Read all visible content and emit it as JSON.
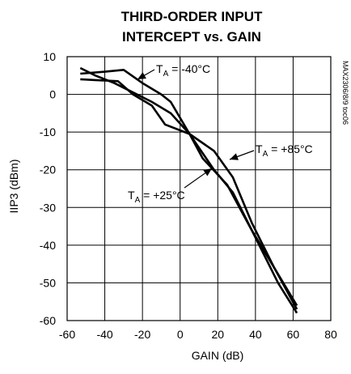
{
  "chart_data": {
    "type": "line",
    "title": [
      "THIRD-ORDER INPUT",
      "INTERCEPT vs. GAIN"
    ],
    "xlabel": "GAIN (dB)",
    "ylabel": "IIP3 (dBm)",
    "xlim": [
      -60,
      80
    ],
    "ylim": [
      -60,
      10
    ],
    "x_ticks": [
      -60,
      -40,
      -20,
      0,
      20,
      40,
      60,
      80
    ],
    "y_ticks": [
      10,
      0,
      -10,
      -20,
      -30,
      -40,
      -50,
      -60
    ],
    "grid": true,
    "reference_code": "MAX2306/8/9 toc06",
    "series": [
      {
        "x": [
          -53,
          -45,
          -33,
          -25,
          -15,
          -8,
          5,
          18,
          28,
          38,
          50,
          62
        ],
        "y": [
          4,
          3.8,
          3.5,
          0,
          -3,
          -8,
          -10.5,
          -15,
          -22,
          -34,
          -46,
          -57
        ]
      },
      {
        "x": [
          -53,
          -40,
          -30,
          -20,
          -10,
          -5,
          5,
          12,
          25,
          38,
          50,
          62
        ],
        "y": [
          5.5,
          6,
          6.5,
          3,
          0,
          -2,
          -10.5,
          -17,
          -24,
          -36,
          -46,
          -56
        ]
      },
      {
        "x": [
          -53,
          -45,
          -35,
          -25,
          -15,
          -5,
          5,
          18,
          28,
          40,
          52,
          62
        ],
        "y": [
          7,
          5,
          3,
          0.5,
          -2,
          -5,
          -10.5,
          -20,
          -26,
          -38,
          -50,
          -58
        ]
      }
    ],
    "annotations": [
      {
        "main": "T",
        "sub": "A",
        "rest": " = -40°C"
      },
      {
        "main": "T",
        "sub": "A",
        "rest": " = +85°C"
      },
      {
        "main": "T",
        "sub": "A",
        "rest": " = +25°C"
      }
    ]
  }
}
